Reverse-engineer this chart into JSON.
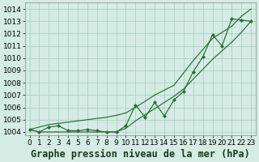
{
  "x": [
    0,
    1,
    2,
    3,
    4,
    5,
    6,
    7,
    8,
    9,
    10,
    11,
    12,
    13,
    14,
    15,
    16,
    17,
    18,
    19,
    20,
    21,
    22,
    23
  ],
  "pressure": [
    1004.2,
    1004.0,
    1004.4,
    1004.5,
    1004.1,
    1004.1,
    1004.2,
    1004.1,
    1004.0,
    1004.0,
    1004.5,
    1006.2,
    1005.2,
    1006.4,
    1005.3,
    1006.6,
    1007.3,
    1008.9,
    1010.1,
    1011.9,
    1011.0,
    1013.2,
    1013.1,
    1013.0
  ],
  "lower_line": [
    1004.2,
    1004.0,
    1004.0,
    1004.0,
    1004.0,
    1004.0,
    1004.0,
    1004.0,
    1004.0,
    1004.0,
    1004.3,
    1004.9,
    1005.4,
    1005.9,
    1006.4,
    1006.9,
    1007.5,
    1008.3,
    1009.1,
    1009.9,
    1010.6,
    1011.3,
    1012.1,
    1013.0
  ],
  "upper_line": [
    1004.2,
    1004.4,
    1004.6,
    1004.7,
    1004.8,
    1004.9,
    1005.0,
    1005.1,
    1005.2,
    1005.35,
    1005.55,
    1006.0,
    1006.5,
    1007.0,
    1007.4,
    1007.8,
    1008.8,
    1009.8,
    1010.7,
    1011.6,
    1012.1,
    1012.6,
    1013.4,
    1014.0
  ],
  "ylim": [
    1003.7,
    1014.5
  ],
  "yticks": [
    1004,
    1005,
    1006,
    1007,
    1008,
    1009,
    1010,
    1011,
    1012,
    1013,
    1014
  ],
  "xlabel": "Graphe pression niveau de la mer (hPa)",
  "bg_color": "#d4ece4",
  "grid_color": "#a8ccc0",
  "line_color": "#2a6b35",
  "tick_fontsize": 6.5,
  "label_fontsize": 8.5
}
